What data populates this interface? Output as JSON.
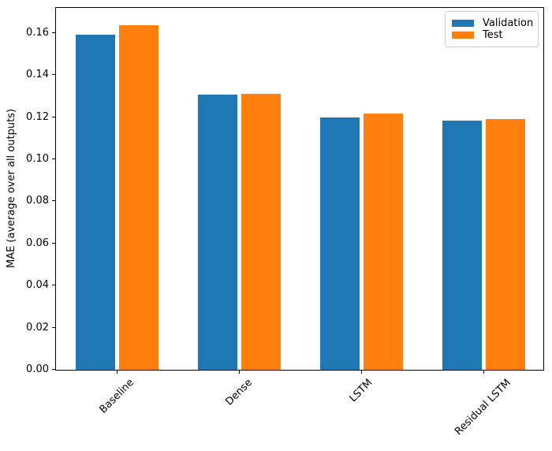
{
  "chart_data": {
    "type": "bar",
    "title": "",
    "xlabel": "",
    "ylabel": "MAE (average over all outputs)",
    "categories": [
      "Baseline",
      "Dense",
      "LSTM",
      "Residual LSTM"
    ],
    "series": [
      {
        "name": "Validation",
        "color": "#1f77b4",
        "values": [
          0.159,
          0.1308,
          0.1199,
          0.1182
        ]
      },
      {
        "name": "Test",
        "color": "#ff7f0e",
        "values": [
          0.1638,
          0.1309,
          0.1216,
          0.1191
        ]
      }
    ],
    "ylim": [
      0,
      0.1719
    ],
    "yticks": [
      0.0,
      0.02,
      0.04,
      0.06,
      0.08,
      0.1,
      0.12,
      0.14,
      0.16
    ],
    "ytick_format": "0.00",
    "x_tick_rotation_deg": 45,
    "grid": false,
    "legend": {
      "position": "upper-right",
      "entries": [
        "Validation",
        "Test"
      ]
    }
  },
  "colors": {
    "axis": "#000000",
    "text": "#000000",
    "legend_border": "#cccccc",
    "background": "#ffffff"
  }
}
